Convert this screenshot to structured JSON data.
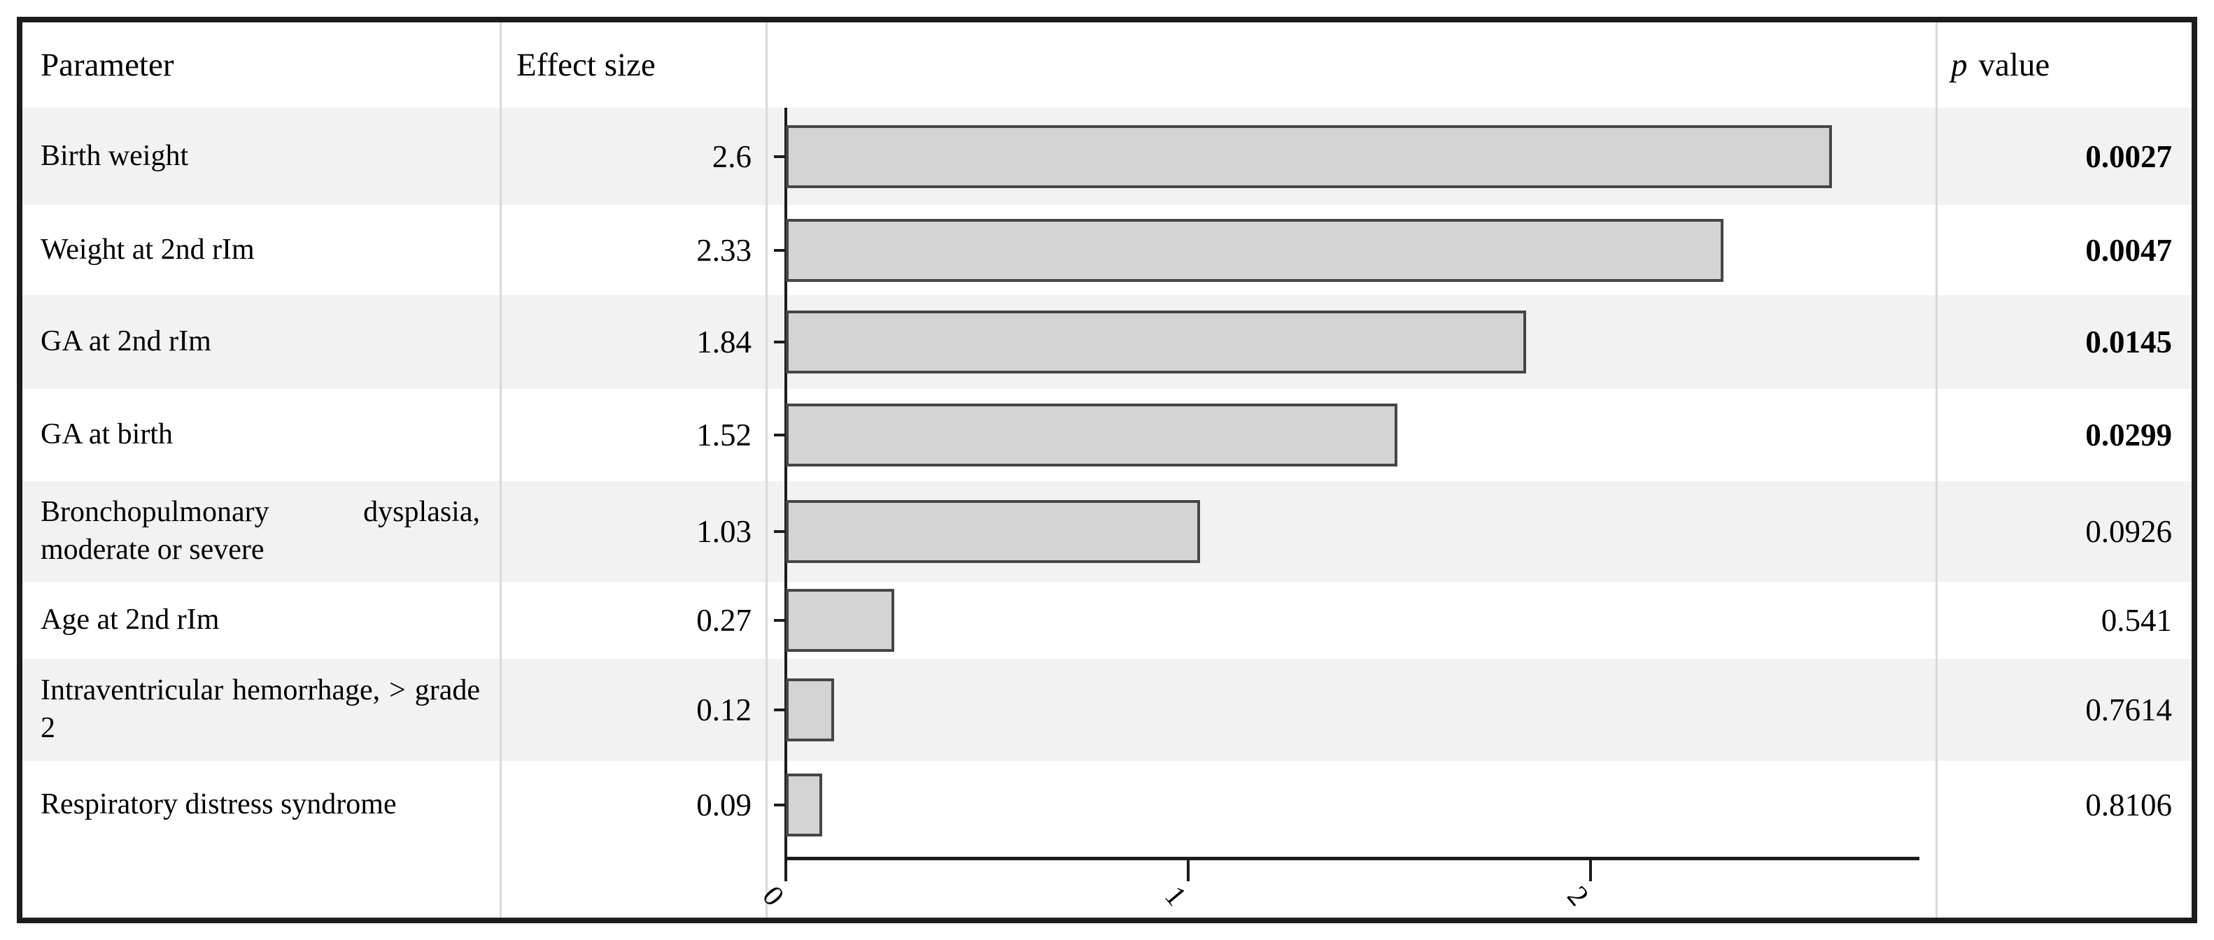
{
  "header": {
    "parameter": "Parameter",
    "effect_size": "Effect size",
    "p_italic": "p",
    "p_rest": "value"
  },
  "rows": [
    {
      "parameter": "Birth weight",
      "effect_size": "2.6",
      "p_value": "0.0027",
      "significant": true
    },
    {
      "parameter": "Weight at 2nd rIm",
      "effect_size": "2.33",
      "p_value": "0.0047",
      "significant": true
    },
    {
      "parameter": "GA at 2nd rIm",
      "effect_size": "1.84",
      "p_value": "0.0145",
      "significant": true
    },
    {
      "parameter": "GA at birth",
      "effect_size": "1.52",
      "p_value": "0.0299",
      "significant": true
    },
    {
      "parameter": "Bronchopulmonary dysplasia, moderate or severe",
      "effect_size": "1.03",
      "p_value": "0.0926",
      "significant": false
    },
    {
      "parameter": "Age at 2nd rIm",
      "effect_size": "0.27",
      "p_value": "0.541",
      "significant": false
    },
    {
      "parameter": "Intraventricular hemorrhage, > grade 2",
      "effect_size": "0.12",
      "p_value": "0.7614",
      "significant": false
    },
    {
      "parameter": "Respiratory distress syndrome",
      "effect_size": "0.09",
      "p_value": "0.8106",
      "significant": false
    }
  ],
  "chart_data": {
    "type": "bar",
    "orientation": "horizontal",
    "title": "",
    "xlabel": "",
    "ylabel": "",
    "categories": [
      "Birth weight",
      "Weight at 2nd rIm",
      "GA at 2nd rIm",
      "GA at birth",
      "Bronchopulmonary dysplasia, moderate or severe",
      "Age at 2nd rIm",
      "Intraventricular hemorrhage, > grade 2",
      "Respiratory distress syndrome"
    ],
    "values": [
      2.6,
      2.33,
      1.84,
      1.52,
      1.03,
      0.27,
      0.12,
      0.09
    ],
    "x_ticks": [
      0,
      1,
      2
    ],
    "xlim": [
      0,
      2.8
    ],
    "grid": false,
    "legend": "none",
    "bar_fill": "#d4d4d4",
    "bar_border": "#464646"
  },
  "colors": {
    "stripe": "#f2f2f2",
    "separator": "#d9d9d9",
    "frame_border": "#1c1c1c",
    "axis": "#1c1c1c"
  }
}
